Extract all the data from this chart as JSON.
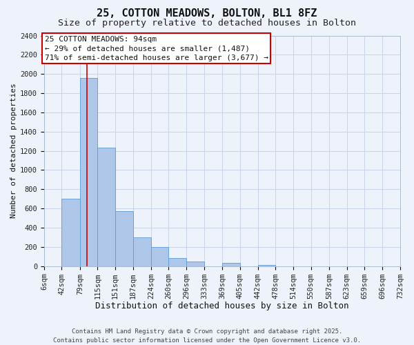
{
  "title": "25, COTTON MEADOWS, BOLTON, BL1 8FZ",
  "subtitle": "Size of property relative to detached houses in Bolton",
  "xlabel": "Distribution of detached houses by size in Bolton",
  "ylabel": "Number of detached properties",
  "bar_values": [
    0,
    700,
    1960,
    1230,
    570,
    300,
    200,
    80,
    50,
    0,
    35,
    0,
    15,
    0,
    0,
    0,
    0,
    0,
    0,
    0
  ],
  "bin_labels": [
    "6sqm",
    "42sqm",
    "79sqm",
    "115sqm",
    "151sqm",
    "187sqm",
    "224sqm",
    "260sqm",
    "296sqm",
    "333sqm",
    "369sqm",
    "405sqm",
    "442sqm",
    "478sqm",
    "514sqm",
    "550sqm",
    "587sqm",
    "623sqm",
    "659sqm",
    "696sqm",
    "732sqm"
  ],
  "bar_color": "#aec6e8",
  "bar_edge_color": "#5b9bd5",
  "grid_color": "#c8d4e8",
  "background_color": "#eef2fa",
  "vline_x": 94,
  "bin_edges": [
    6,
    42,
    79,
    115,
    151,
    187,
    224,
    260,
    296,
    333,
    369,
    405,
    442,
    478,
    514,
    550,
    587,
    623,
    659,
    696,
    732
  ],
  "annotation_title": "25 COTTON MEADOWS: 94sqm",
  "annotation_line1": "← 29% of detached houses are smaller (1,487)",
  "annotation_line2": "71% of semi-detached houses are larger (3,677) →",
  "annotation_box_color": "#ffffff",
  "annotation_box_edge": "#cc0000",
  "vline_color": "#cc0000",
  "ylim": [
    0,
    2400
  ],
  "yticks": [
    0,
    200,
    400,
    600,
    800,
    1000,
    1200,
    1400,
    1600,
    1800,
    2000,
    2200,
    2400
  ],
  "footer1": "Contains HM Land Registry data © Crown copyright and database right 2025.",
  "footer2": "Contains public sector information licensed under the Open Government Licence v3.0.",
  "title_fontsize": 11,
  "subtitle_fontsize": 9.5,
  "xlabel_fontsize": 9,
  "ylabel_fontsize": 8,
  "tick_fontsize": 7.5,
  "annotation_fontsize": 8,
  "footer_fontsize": 6.5
}
